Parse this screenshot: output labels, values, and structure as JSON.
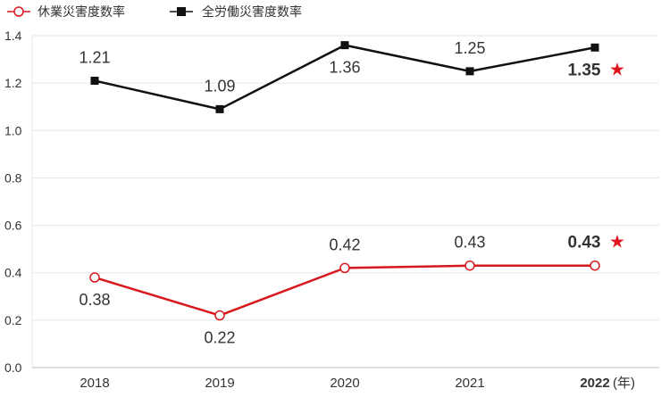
{
  "legend": {
    "series1": "休業災害度数率",
    "series2": "全労働災害度数率"
  },
  "chart_data": {
    "type": "line",
    "x": [
      "2018",
      "2019",
      "2020",
      "2021",
      "2022"
    ],
    "x_unit_label": "(年)",
    "highlight_index": 4,
    "ylim": [
      0,
      1.4
    ],
    "y_ticks": [
      "0.0",
      "0.2",
      "0.4",
      "0.6",
      "0.8",
      "1.0",
      "1.2",
      "1.4"
    ],
    "grid": true,
    "legend_position": "top-left",
    "series": [
      {
        "name": "休業災害度数率",
        "values": [
          0.38,
          0.22,
          0.42,
          0.43,
          0.43
        ],
        "labels": [
          "0.38",
          "0.22",
          "0.42",
          "0.43",
          "0.43"
        ],
        "label_pos": [
          "below",
          "below",
          "above",
          "above",
          "above"
        ],
        "color": "#d7191e",
        "marker": "open-circle"
      },
      {
        "name": "全労働災害度数率",
        "values": [
          1.21,
          1.09,
          1.36,
          1.25,
          1.35
        ],
        "labels": [
          "1.21",
          "1.09",
          "1.36",
          "1.25",
          "1.35"
        ],
        "label_pos": [
          "above",
          "above",
          "below",
          "above",
          "below"
        ],
        "color": "#111111",
        "marker": "filled-square"
      }
    ],
    "star_symbol": "★",
    "star_color": "#e0141e"
  }
}
